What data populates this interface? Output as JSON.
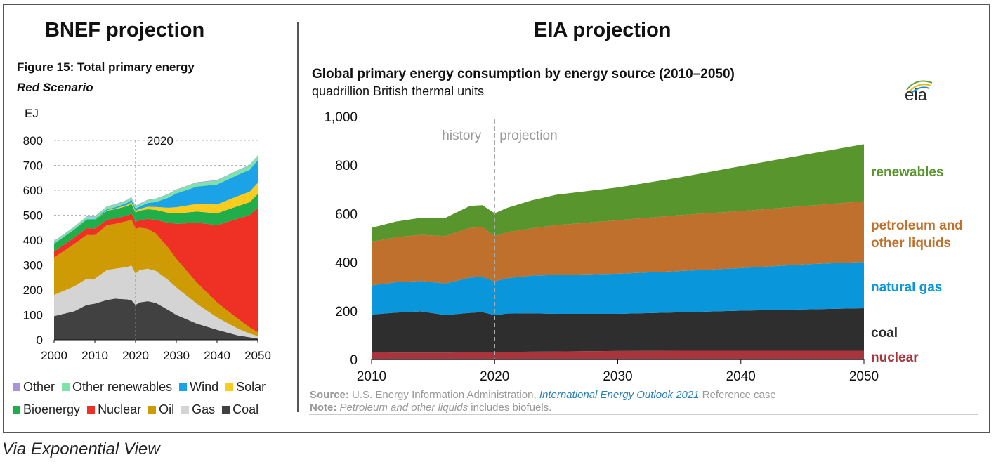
{
  "left_title": "BNEF projection",
  "right_title": "EIA projection",
  "via": "Via Exponential View",
  "colors": {
    "Other": "#a894d8",
    "Other renewables": "#7ee3a8",
    "Wind": "#1ca2e6",
    "Solar": "#fbcb1d",
    "Bioenergy": "#1fae4a",
    "Nuclear": "#ee3124",
    "Oil": "#cf9b04",
    "Gas": "#d4d4d4",
    "Coal": "#414141",
    "nuclear": "#a8343e",
    "coal": "#2e2e2e",
    "natural gas": "#0a96db",
    "petroleum and other liquids": "#bf702c",
    "renewables": "#58952c"
  },
  "chart_data": [
    {
      "type": "area",
      "stacked": true,
      "title": "Figure 15:  Total primary energy",
      "subtitle": "Red Scenario",
      "ylabel": "EJ",
      "marker": {
        "x": 2020,
        "label": "2020"
      },
      "xlim": [
        2000,
        2050
      ],
      "ylim": [
        0,
        800
      ],
      "xticks": [
        2000,
        2010,
        2020,
        2030,
        2040,
        2050
      ],
      "yticks": [
        0,
        100,
        200,
        300,
        400,
        500,
        600,
        700,
        800
      ],
      "grid": "horizontal dashed",
      "legend_position": "bottom",
      "legend_rows": [
        [
          "Other",
          "Other renewables",
          "Wind",
          "Solar"
        ],
        [
          "Bioenergy",
          "Nuclear",
          "Oil",
          "Gas",
          "Coal"
        ]
      ],
      "x": [
        2000,
        2005,
        2008,
        2010,
        2013,
        2015,
        2018,
        2019,
        2020,
        2021,
        2023,
        2025,
        2028,
        2030,
        2035,
        2040,
        2045,
        2048,
        2050
      ],
      "series": [
        {
          "name": "Coal",
          "values": [
            95,
            115,
            140,
            145,
            160,
            165,
            162,
            158,
            140,
            150,
            155,
            148,
            120,
            100,
            65,
            40,
            18,
            10,
            5
          ]
        },
        {
          "name": "Gas",
          "values": [
            85,
            100,
            105,
            100,
            120,
            120,
            130,
            140,
            125,
            130,
            130,
            128,
            120,
            110,
            80,
            50,
            28,
            15,
            10
          ]
        },
        {
          "name": "Oil",
          "values": [
            150,
            170,
            175,
            175,
            180,
            180,
            185,
            185,
            180,
            170,
            160,
            150,
            130,
            115,
            85,
            60,
            40,
            25,
            15
          ]
        },
        {
          "name": "Nuclear",
          "values": [
            25,
            26,
            28,
            26,
            22,
            22,
            22,
            25,
            28,
            30,
            40,
            55,
            100,
            140,
            240,
            310,
            400,
            450,
            500
          ]
        },
        {
          "name": "Bioenergy",
          "values": [
            30,
            32,
            34,
            35,
            36,
            37,
            38,
            38,
            38,
            38,
            39,
            40,
            40,
            42,
            45,
            48,
            50,
            52,
            55
          ]
        },
        {
          "name": "Solar",
          "values": [
            0,
            0,
            0,
            1,
            2,
            3,
            5,
            6,
            6,
            7,
            10,
            12,
            20,
            25,
            30,
            35,
            40,
            42,
            45
          ]
        },
        {
          "name": "Wind",
          "values": [
            1,
            1,
            2,
            3,
            4,
            5,
            8,
            9,
            9,
            10,
            15,
            20,
            40,
            55,
            70,
            80,
            85,
            88,
            90
          ]
        },
        {
          "name": "Other renewables",
          "values": [
            8,
            8,
            9,
            9,
            10,
            10,
            10,
            10,
            10,
            10,
            11,
            12,
            13,
            14,
            15,
            16,
            17,
            18,
            18
          ]
        },
        {
          "name": "Other",
          "values": [
            2,
            2,
            2,
            2,
            2,
            2,
            2,
            2,
            2,
            2,
            2,
            2,
            2,
            2,
            2,
            2,
            2,
            2,
            2
          ]
        }
      ]
    },
    {
      "type": "area",
      "stacked": true,
      "title": "Global primary energy consumption by energy source (2010–2050)",
      "subtitle": "quadrillion British thermal units",
      "logo": "eia",
      "xlim": [
        2010,
        2050
      ],
      "ylim": [
        0,
        1000
      ],
      "xticks": [
        2010,
        2020,
        2030,
        2040,
        2050
      ],
      "yticks": [
        0,
        200,
        400,
        600,
        800,
        1000
      ],
      "ytick_labels": [
        "0",
        "200",
        "400",
        "600",
        "800",
        "1,000"
      ],
      "grid": "none",
      "divider": {
        "x": 2020,
        "left_label": "history",
        "right_label": "projection"
      },
      "legend_position": "right, inline labels",
      "labels": {
        "renewables": "renewables",
        "petroleum": "petroleum and",
        "petroleum2": "other liquids",
        "gas": "natural gas",
        "coal": "coal",
        "nuclear": "nuclear"
      },
      "x": [
        2010,
        2012,
        2014,
        2016,
        2018,
        2019,
        2020,
        2021,
        2023,
        2025,
        2030,
        2035,
        2040,
        2045,
        2050
      ],
      "series": [
        {
          "name": "nuclear",
          "values": [
            30,
            28,
            28,
            28,
            30,
            30,
            30,
            31,
            32,
            33,
            35,
            36,
            36,
            36,
            36
          ]
        },
        {
          "name": "coal",
          "values": [
            155,
            165,
            170,
            155,
            162,
            165,
            152,
            158,
            158,
            155,
            153,
            158,
            165,
            170,
            175
          ]
        },
        {
          "name": "natural gas",
          "values": [
            120,
            125,
            125,
            130,
            145,
            145,
            140,
            145,
            155,
            160,
            165,
            170,
            175,
            185,
            190
          ]
        },
        {
          "name": "petroleum and other liquids",
          "values": [
            180,
            185,
            190,
            195,
            205,
            205,
            185,
            190,
            195,
            205,
            220,
            230,
            235,
            240,
            250
          ]
        },
        {
          "name": "renewables",
          "values": [
            57,
            65,
            70,
            75,
            90,
            90,
            95,
            100,
            115,
            125,
            135,
            155,
            185,
            210,
            235
          ]
        }
      ],
      "source_prefix": "Source:",
      "source_text": "U.S. Energy Information Administration,",
      "source_link": "International Energy Outlook 2021",
      "source_suffix": "Reference case",
      "note_prefix": "Note:",
      "note_italic": "Petroleum and other liquids",
      "note_suffix": "includes biofuels."
    }
  ]
}
